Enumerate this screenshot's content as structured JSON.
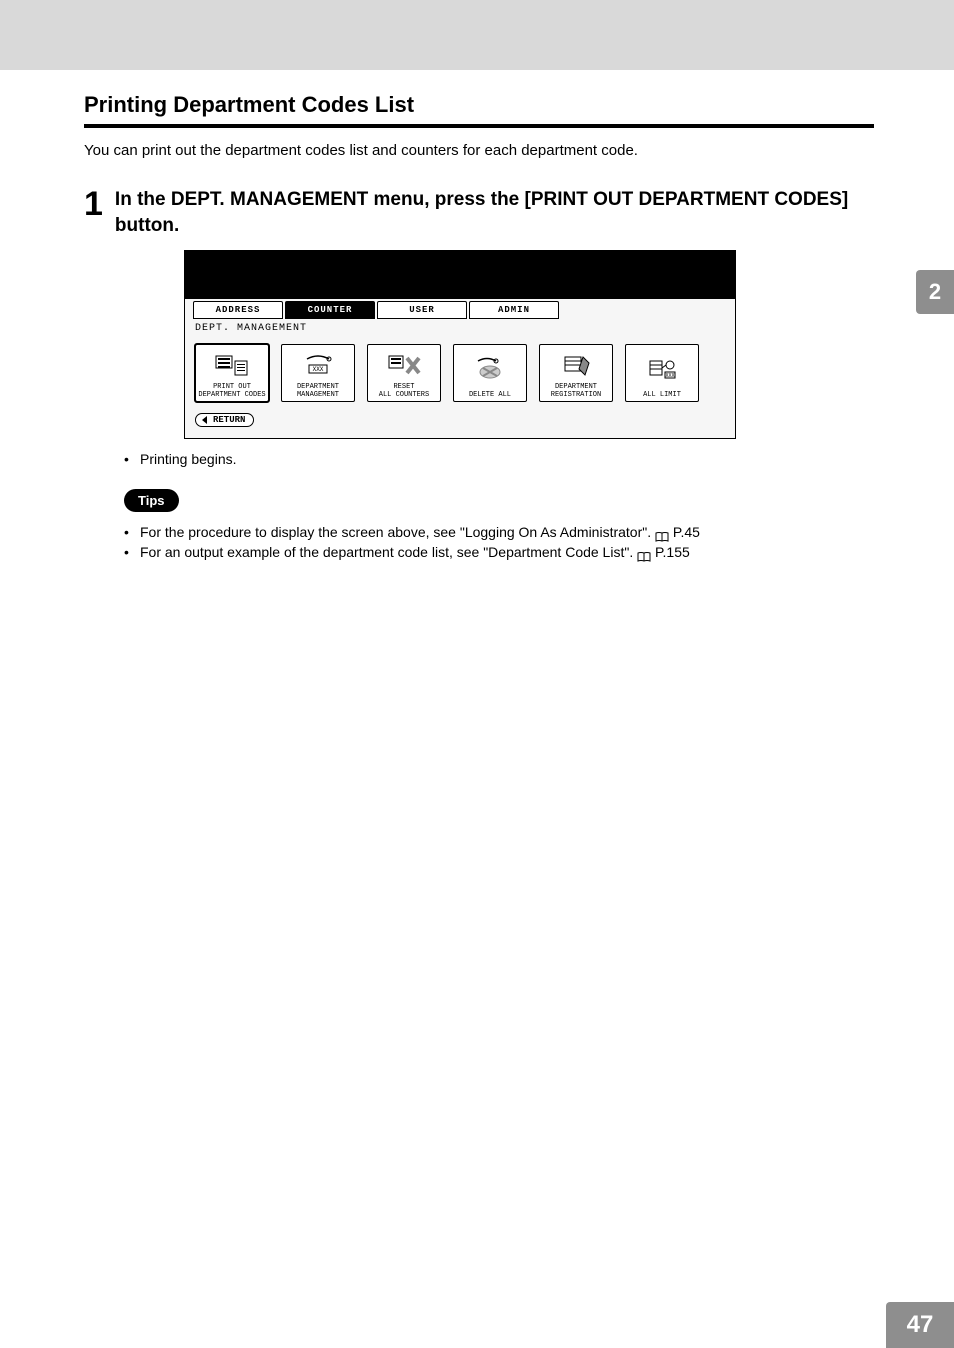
{
  "section_heading": "Printing Department Codes List",
  "intro": "You can print out the department codes list and counters for each department code.",
  "step": {
    "number": "1",
    "text": "In the DEPT. MANAGEMENT menu, press the [PRINT OUT DEPARTMENT CODES] button."
  },
  "screenshot": {
    "tabs": {
      "address": "ADDRESS",
      "counter": "COUNTER",
      "user": "USER",
      "admin": "ADMIN"
    },
    "crumb": "DEPT.  MANAGEMENT",
    "buttons": {
      "printout": "PRINT OUT\nDEPARTMENT CODES",
      "deptmgmt": "DEPARTMENT\nMANAGEMENT",
      "reset": "RESET\nALL COUNTERS",
      "deleteall": "DELETE ALL",
      "deptreg": "DEPARTMENT\nREGISTRATION",
      "alllimit": "ALL LIMIT"
    },
    "return": "RETURN"
  },
  "printing_begins": "Printing begins.",
  "tips_label": "Tips",
  "tip1_a": "For the procedure to display the screen above, see \"Logging On As Administrator\".",
  "tip1_b": " P.45",
  "tip2_a": "For an output example of the department code list, see \"Department Code List\".",
  "tip2_b": " P.155",
  "side_tab": "2",
  "page_number": "47",
  "colors": {
    "band": "#d9d9d9",
    "gray": "#8e8e8e",
    "black": "#000000",
    "white": "#ffffff"
  }
}
